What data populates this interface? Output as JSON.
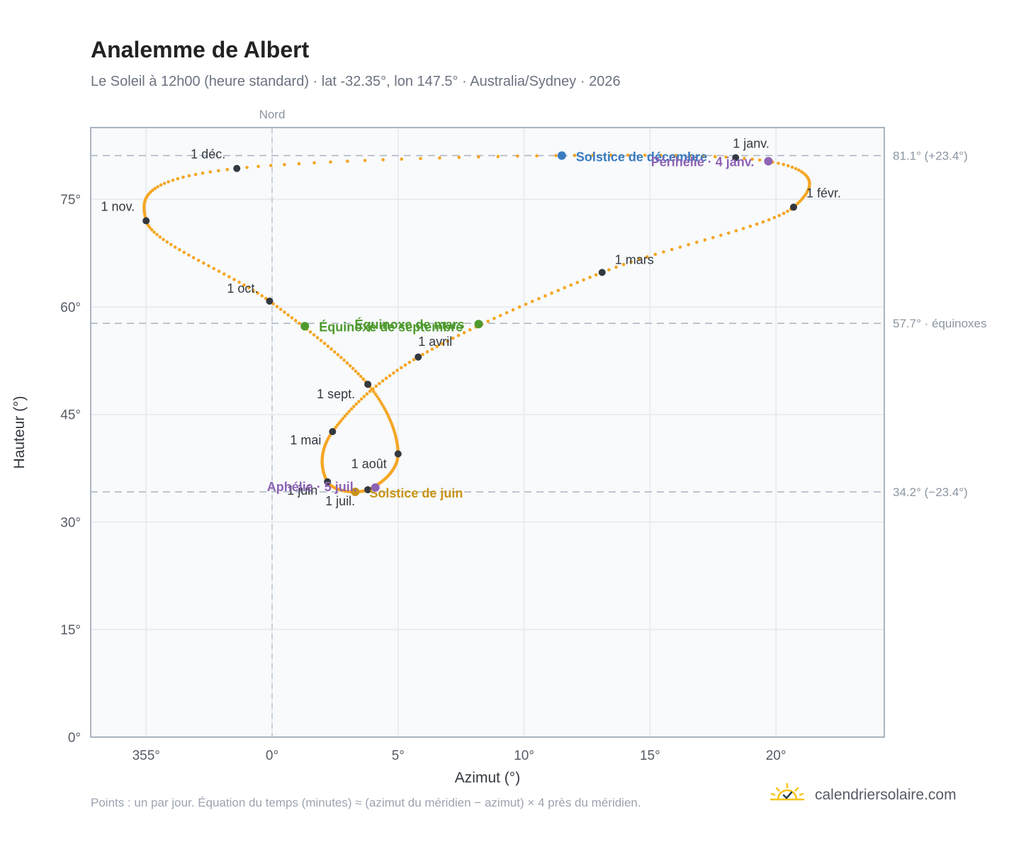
{
  "title": "Analemme de Albert",
  "subtitle": "Le Soleil à 12h00 (heure standard) · lat -32.35°, lon 147.5° · Australia/Sydney · 2026",
  "footnote": "Points : un par jour. Équation du temps (minutes) ≈ (azimut du méridien − azimut) × 4 près du méridien.",
  "brand": {
    "name": "calendriersolaire.com",
    "icon": "sun-check-icon"
  },
  "colors": {
    "curve": "#f5a623",
    "month_marker": "#333940",
    "equinox": "#4e9a2d",
    "december_solstice": "#3a7bbf",
    "june_solstice": "#c99316",
    "perihelion_aphelion": "#8e63b5",
    "grid": "#e5e9ee",
    "plot_bg": "#f8fafc"
  },
  "chart_data": {
    "type": "scatter",
    "xlabel": "Azimut (°)",
    "ylabel": "Hauteur (°)",
    "xlim": [
      352.8,
      24.3
    ],
    "ylim": [
      0,
      85
    ],
    "x_ticks": [
      "355°",
      "0°",
      "5°",
      "10°",
      "15°",
      "20°"
    ],
    "y_ticks": [
      "0°",
      "15°",
      "30°",
      "45°",
      "60°",
      "75°"
    ],
    "grid": true,
    "meridian_label": "Nord",
    "reference_lines": [
      {
        "altitude": 81.1,
        "label": "81.1° (+23.4°)"
      },
      {
        "altitude": 57.7,
        "label": "57.7° · équinoxes"
      },
      {
        "altitude": 34.2,
        "label": "34.2° (−23.4°)"
      }
    ],
    "month_markers": [
      {
        "label": "1 janv.",
        "az": 18.4,
        "alt": 80.8
      },
      {
        "label": "1 févr.",
        "az": 20.7,
        "alt": 73.9
      },
      {
        "label": "1 mars",
        "az": 13.1,
        "alt": 64.8
      },
      {
        "label": "1 avril",
        "az": 5.8,
        "alt": 53.0
      },
      {
        "label": "1 mai",
        "az": 2.4,
        "alt": 42.6
      },
      {
        "label": "1 juin",
        "az": 2.2,
        "alt": 35.6
      },
      {
        "label": "1 juil.",
        "az": 3.8,
        "alt": 34.5
      },
      {
        "label": "1 août",
        "az": 5.0,
        "alt": 39.5
      },
      {
        "label": "1 sept.",
        "az": 3.8,
        "alt": 49.2
      },
      {
        "label": "1 oct.",
        "az": -0.1,
        "alt": 60.8
      },
      {
        "label": "1 nov.",
        "az": -5.0,
        "alt": 72.0
      },
      {
        "label": "1 déc.",
        "az": -1.4,
        "alt": 79.3
      }
    ],
    "events": [
      {
        "label": "Solstice de décembre",
        "az": 11.5,
        "alt": 81.1,
        "color": "#3a7bbf"
      },
      {
        "label": "Périhélie · 4 janv.",
        "az": 19.7,
        "alt": 80.3,
        "color": "#8e63b5"
      },
      {
        "label": "Équinoxe de mars",
        "az": 8.2,
        "alt": 57.6,
        "color": "#4e9a2d"
      },
      {
        "label": "Équinoxe de septembre",
        "az": 1.3,
        "alt": 57.3,
        "color": "#4e9a2d"
      },
      {
        "label": "Solstice de juin",
        "az": 3.3,
        "alt": 34.2,
        "color": "#c99316"
      },
      {
        "label": "Aphélie · 5 juil.",
        "az": 4.1,
        "alt": 34.8,
        "color": "#8e63b5"
      }
    ]
  }
}
